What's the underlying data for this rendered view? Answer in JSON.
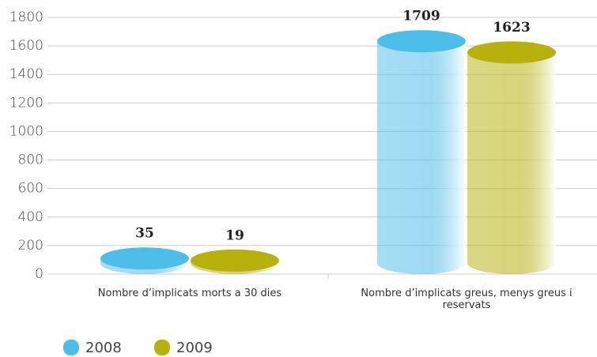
{
  "chart_data": {
    "type": "bar",
    "style": "cylinder",
    "categories": [
      "Nombre d’implicats morts a 30 dies",
      "Nombre d’implicats greus, menys greus i reservats"
    ],
    "series": [
      {
        "name": "2008",
        "color": "#4dbde9",
        "values": [
          35,
          1709
        ]
      },
      {
        "name": "2009",
        "color": "#b7b10c",
        "values": [
          19,
          1623
        ]
      }
    ],
    "ylim": [
      0,
      1800
    ],
    "yticks": [
      0,
      200,
      400,
      600,
      800,
      1000,
      1200,
      1400,
      1600,
      1800
    ],
    "grid": true
  }
}
